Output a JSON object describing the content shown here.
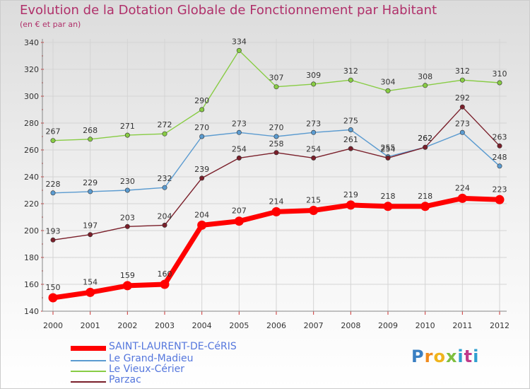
{
  "header": {
    "title": "Evolution de la Dotation Globale de Fonctionnement par Habitant",
    "subtitle": "(en € et par an)"
  },
  "logo": {
    "text": "Proxiti"
  },
  "chart_data": {
    "type": "line",
    "title": "Evolution de la Dotation Globale de Fonctionnement par Habitant",
    "subtitle": "(en € et par an)",
    "xlabel": "",
    "ylabel": "",
    "categories": [
      "2000",
      "2001",
      "2002",
      "2003",
      "2004",
      "2005",
      "2006",
      "2007",
      "2008",
      "2009",
      "2010",
      "2011",
      "2012"
    ],
    "ylim": [
      140,
      340
    ],
    "yticks": [
      140,
      160,
      180,
      200,
      220,
      240,
      260,
      280,
      300,
      320,
      340
    ],
    "grid": true,
    "legend_position": "bottom-left",
    "series": [
      {
        "name": "Le Vieux-Cérier",
        "color": "#88cc44",
        "width": "thin",
        "values": [
          267,
          268,
          271,
          272,
          290,
          334,
          307,
          309,
          312,
          304,
          308,
          312,
          310
        ],
        "labels": [
          "267",
          "268",
          "271",
          "272",
          "290",
          "334",
          "307",
          "309",
          "312",
          "304",
          "308",
          "312",
          "310"
        ]
      },
      {
        "name": "Le Grand-Madieu",
        "color": "#5b9bd0",
        "width": "thin",
        "values": [
          228,
          229,
          230,
          232,
          270,
          273,
          270,
          273,
          275,
          255,
          262,
          273,
          248
        ],
        "labels": [
          "228",
          "229",
          "230",
          "232",
          "270",
          "273",
          "270",
          "273",
          "275",
          "255",
          "262",
          "273",
          "248"
        ]
      },
      {
        "name": "Parzac",
        "color": "#7a1f2a",
        "width": "thin",
        "values": [
          193,
          197,
          203,
          204,
          239,
          254,
          258,
          254,
          261,
          254,
          262,
          292,
          263
        ],
        "labels": [
          "193",
          "197",
          "203",
          "204",
          "239",
          "254",
          "258",
          "254",
          "261",
          "254",
          "262",
          "292",
          "263"
        ]
      },
      {
        "name": "SAINT-LAURENT-DE-CéRIS",
        "color": "#ff0000",
        "width": "thick",
        "values": [
          150,
          154,
          159,
          160,
          204,
          207,
          214,
          215,
          219,
          218,
          218,
          224,
          223
        ],
        "labels": [
          "150",
          "154",
          "159",
          "160",
          "204",
          "207",
          "214",
          "215",
          "219",
          "218",
          "218",
          "224",
          "223"
        ]
      }
    ],
    "legend": [
      "SAINT-LAURENT-DE-CéRIS",
      "Le Grand-Madieu",
      "Le Vieux-Cérier",
      "Parzac"
    ]
  }
}
